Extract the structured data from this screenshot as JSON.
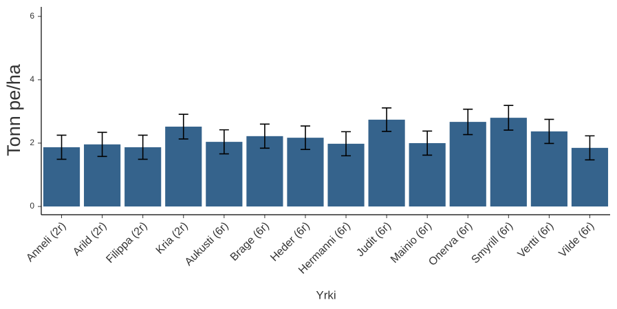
{
  "chart_data": {
    "type": "bar",
    "x_label": "Yrki",
    "y_label": "Tonn pe/ha",
    "categories": [
      "Anneli (2r)",
      "Arild (2r)",
      "Filippa (2r)",
      "Kria (2r)",
      "Aukusti (6r)",
      "Brage (6r)",
      "Heder (6r)",
      "Hermanni (6r)",
      "Judit (6r)",
      "Mainio (6r)",
      "Onerva (6r)",
      "Smyrill (6r)",
      "Vertti (6r)",
      "Vilde (6r)"
    ],
    "values": [
      1.87,
      1.96,
      1.87,
      2.52,
      2.04,
      2.22,
      2.17,
      1.98,
      2.74,
      2.0,
      2.67,
      2.8,
      2.37,
      1.85
    ],
    "errors": [
      0.38,
      0.38,
      0.38,
      0.39,
      0.38,
      0.38,
      0.37,
      0.38,
      0.37,
      0.38,
      0.4,
      0.39,
      0.38,
      0.38
    ],
    "color": "#35638c",
    "ylim": [
      -0.26,
      6.3
    ],
    "yticks": [
      0,
      2,
      4,
      6
    ],
    "grid": false
  }
}
